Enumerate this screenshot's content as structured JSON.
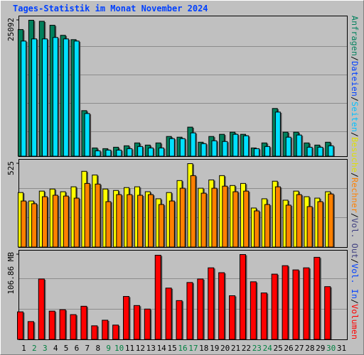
{
  "title": "Tages-Statistik im Monat November 2024",
  "legend": [
    {
      "label": "Anfragen",
      "color": "#00805c"
    },
    {
      "label": "Dateien",
      "color": "#0040ff"
    },
    {
      "label": "Seiten",
      "color": "#00c0ff"
    },
    {
      "label": "Besuche",
      "color": "#e0e000"
    },
    {
      "label": "Rechner",
      "color": "#ff8000"
    },
    {
      "label": "Vol. Out",
      "color": "#404080"
    },
    {
      "label": "Vol. In",
      "color": "#0040ff"
    },
    {
      "label": "Volumen",
      "color": "#ff0000"
    }
  ],
  "legend_separator": "/",
  "chart_data": [
    {
      "type": "bar",
      "ylim": [
        0,
        25092
      ],
      "yticks": [
        25092
      ],
      "series": [
        {
          "color": "#00805c",
          "values": [
            23376,
            25092,
            24900,
            24167,
            22316,
            21524,
            8452,
            1585,
            1453,
            1717,
            1981,
            2509,
            2113,
            2509,
            3698,
            3566,
            5415,
            2641,
            3698,
            4094,
            4490,
            4094,
            1585,
            2509,
            8848,
            4490,
            4490,
            2509,
            2113,
            2641,
            null
          ]
        },
        {
          "color": "#00e0ff",
          "values": [
            21260,
            21656,
            21656,
            21920,
            21656,
            21260,
            7923,
            1057,
            1189,
            1189,
            1453,
            1849,
            1585,
            1585,
            3302,
            3302,
            4358,
            2377,
            2905,
            2773,
            4094,
            3830,
            1453,
            1849,
            8188,
            3566,
            3962,
            1717,
            1717,
            1981,
            null
          ]
        }
      ]
    },
    {
      "type": "bar",
      "ylim": [
        0,
        525
      ],
      "yticks": [
        525
      ],
      "series": [
        {
          "color": "#ffff00",
          "values": [
            344,
            291,
            353,
            366,
            349,
            380,
            477,
            454,
            366,
            357,
            375,
            380,
            349,
            305,
            344,
            419,
            525,
            371,
            423,
            450,
            388,
            401,
            247,
            305,
            415,
            296,
            353,
            318,
            309,
            349,
            null
          ]
        },
        {
          "color": "#ff8000",
          "values": [
            291,
            274,
            318,
            327,
            322,
            309,
            401,
            397,
            287,
            331,
            331,
            327,
            331,
            269,
            291,
            371,
            450,
            340,
            371,
            384,
            349,
            353,
            229,
            269,
            380,
            265,
            331,
            256,
            287,
            335,
            null
          ]
        }
      ]
    },
    {
      "type": "bar",
      "ylim": [
        0,
        106.86
      ],
      "yticks": [
        {
          "value": 106.86,
          "label": "106.86 MB"
        }
      ],
      "categories": [
        "1",
        "2",
        "3",
        "4",
        "5",
        "6",
        "7",
        "8",
        "9",
        "10",
        "11",
        "12",
        "13",
        "14",
        "15",
        "16",
        "17",
        "18",
        "19",
        "20",
        "21",
        "22",
        "23",
        "24",
        "25",
        "26",
        "27",
        "28",
        "29",
        "30",
        "31"
      ],
      "category_colors": [
        "#000000",
        "#008040",
        "#008040",
        "#000000",
        "#000000",
        "#000000",
        "#000000",
        "#000000",
        "#008040",
        "#008040",
        "#000000",
        "#000000",
        "#000000",
        "#000000",
        "#000000",
        "#008040",
        "#008040",
        "#000000",
        "#000000",
        "#000000",
        "#000000",
        "#000000",
        "#008040",
        "#008040",
        "#000000",
        "#000000",
        "#000000",
        "#000000",
        "#000000",
        "#008040",
        "#000000"
      ],
      "series": [
        {
          "color": "#ff0000",
          "values": [
            35.0,
            22.8,
            76.2,
            35.9,
            37.7,
            31.5,
            42.0,
            17.5,
            24.5,
            18.4,
            54.3,
            42.9,
            38.5,
            106.0,
            64.8,
            49.1,
            71.8,
            76.2,
            90.2,
            84.1,
            55.2,
            106.86,
            72.7,
            58.7,
            82.3,
            92.9,
            87.6,
            90.2,
            103.4,
            66.6,
            null
          ]
        }
      ]
    }
  ]
}
